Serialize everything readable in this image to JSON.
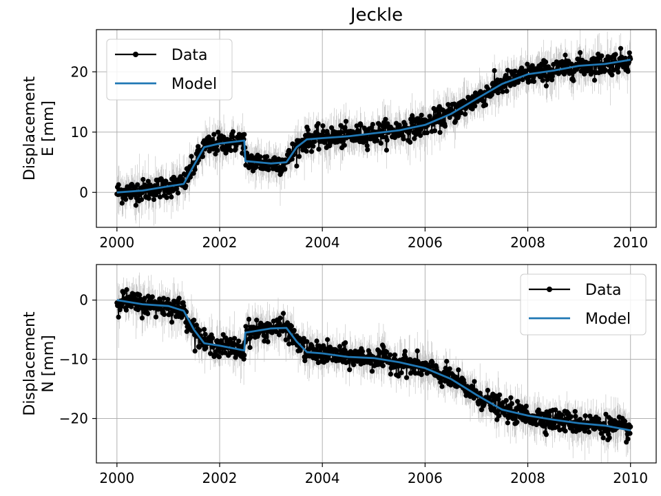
{
  "chart_data": [
    {
      "type": "line",
      "title": "Jeckle",
      "ylabel_lines": [
        "Displacement",
        "E [mm]"
      ],
      "xlabel": "",
      "xlim": [
        1999.6,
        2010.5
      ],
      "ylim": [
        -5.8,
        27.0
      ],
      "xticks": [
        2000,
        2002,
        2004,
        2006,
        2008,
        2010
      ],
      "xtick_labels": [
        "2000",
        "2002",
        "2004",
        "2006",
        "2008",
        "2010"
      ],
      "yticks": [
        0,
        10,
        20
      ],
      "ytick_labels": [
        "0",
        "10",
        "20"
      ],
      "grid": true,
      "legend_position": "upper-left",
      "noise_std": 0.9,
      "series": [
        {
          "name": "Data",
          "color": "#000000",
          "style": "markers",
          "x": [
            2000.0,
            2000.5,
            2001.0,
            2001.3,
            2001.5,
            2001.7,
            2002.0,
            2002.48,
            2002.5,
            2003.0,
            2003.3,
            2003.5,
            2003.7,
            2004.0,
            2004.5,
            2005.0,
            2005.5,
            2006.0,
            2006.5,
            2007.0,
            2007.5,
            2008.0,
            2008.5,
            2009.0,
            2009.5,
            2010.0
          ],
          "y": [
            0.0,
            0.3,
            1.0,
            1.4,
            4.5,
            7.5,
            8.1,
            8.6,
            5.2,
            4.8,
            5.0,
            7.5,
            8.8,
            9.0,
            9.3,
            9.8,
            10.3,
            11.2,
            13.0,
            15.5,
            18.0,
            19.6,
            20.2,
            21.0,
            21.3,
            22.0
          ]
        },
        {
          "name": "Model",
          "color": "#1f77b4",
          "style": "line",
          "x": [
            2000.0,
            2000.5,
            2001.0,
            2001.3,
            2001.5,
            2001.7,
            2002.0,
            2002.48,
            2002.5,
            2003.0,
            2003.3,
            2003.5,
            2003.7,
            2004.0,
            2004.5,
            2005.0,
            2005.5,
            2006.0,
            2006.5,
            2007.0,
            2007.5,
            2008.0,
            2008.5,
            2009.0,
            2009.5,
            2010.0
          ],
          "y": [
            0.0,
            0.3,
            1.0,
            1.4,
            4.5,
            7.5,
            8.1,
            8.6,
            5.2,
            4.8,
            5.0,
            7.5,
            8.8,
            9.0,
            9.3,
            9.8,
            10.3,
            11.2,
            13.0,
            15.5,
            18.0,
            19.6,
            20.2,
            21.0,
            21.3,
            22.0
          ]
        }
      ]
    },
    {
      "type": "line",
      "title": "",
      "ylabel_lines": [
        "Displacement",
        "N [mm]"
      ],
      "xlabel": "",
      "xlim": [
        1999.6,
        2010.5
      ],
      "ylim": [
        -27.5,
        6.0
      ],
      "xticks": [
        2000,
        2002,
        2004,
        2006,
        2008,
        2010
      ],
      "xtick_labels": [
        "2000",
        "2002",
        "2004",
        "2006",
        "2008",
        "2010"
      ],
      "yticks": [
        0,
        -10,
        -20
      ],
      "ytick_labels": [
        "0",
        "−10",
        "−20"
      ],
      "grid": true,
      "legend_position": "upper-right",
      "noise_std": 0.9,
      "series": [
        {
          "name": "Data",
          "color": "#000000",
          "style": "markers",
          "x": [
            2000.0,
            2000.5,
            2001.0,
            2001.3,
            2001.5,
            2001.7,
            2002.0,
            2002.48,
            2002.5,
            2003.0,
            2003.3,
            2003.5,
            2003.7,
            2004.0,
            2004.5,
            2005.0,
            2005.5,
            2006.0,
            2006.5,
            2007.0,
            2007.5,
            2008.0,
            2008.5,
            2009.0,
            2009.5,
            2010.0
          ],
          "y": [
            0.0,
            -0.7,
            -1.0,
            -1.8,
            -5.0,
            -7.3,
            -7.7,
            -8.5,
            -5.5,
            -4.8,
            -4.7,
            -7.0,
            -8.8,
            -9.0,
            -9.6,
            -9.8,
            -10.5,
            -11.5,
            -13.3,
            -16.0,
            -18.5,
            -19.5,
            -20.2,
            -20.8,
            -21.2,
            -22.0
          ]
        },
        {
          "name": "Model",
          "color": "#1f77b4",
          "style": "line",
          "x": [
            2000.0,
            2000.5,
            2001.0,
            2001.3,
            2001.5,
            2001.7,
            2002.0,
            2002.48,
            2002.5,
            2003.0,
            2003.3,
            2003.5,
            2003.7,
            2004.0,
            2004.5,
            2005.0,
            2005.5,
            2006.0,
            2006.5,
            2007.0,
            2007.5,
            2008.0,
            2008.5,
            2009.0,
            2009.5,
            2010.0
          ],
          "y": [
            0.0,
            -0.7,
            -1.0,
            -1.8,
            -5.0,
            -7.3,
            -7.7,
            -8.5,
            -5.5,
            -4.8,
            -4.7,
            -7.0,
            -8.8,
            -9.0,
            -9.6,
            -9.8,
            -10.5,
            -11.5,
            -13.3,
            -16.0,
            -18.5,
            -19.5,
            -20.2,
            -20.8,
            -21.2,
            -22.0
          ]
        }
      ]
    }
  ]
}
